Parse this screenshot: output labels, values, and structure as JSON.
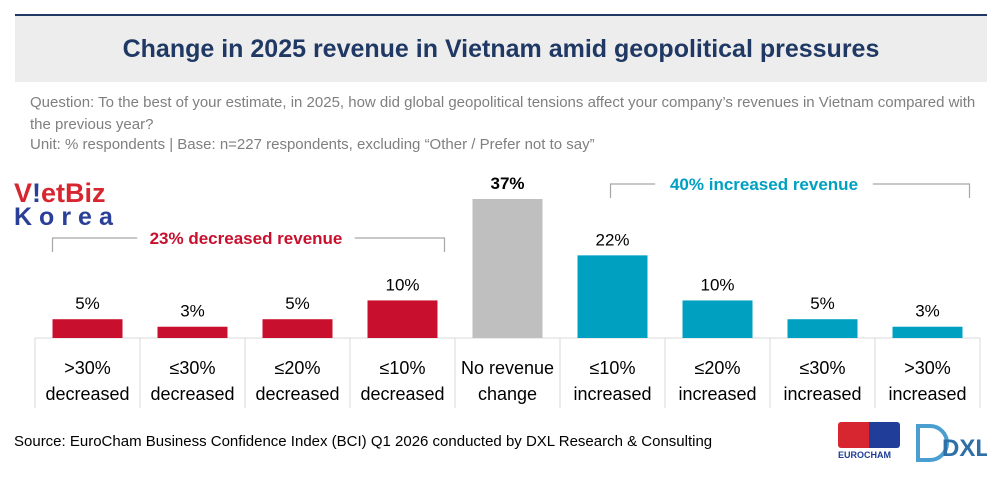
{
  "title": "Change in 2025 revenue in Vietnam amid geopolitical pressures",
  "question": "Question: To the best of your estimate, in 2025, how did global geopolitical tensions affect your company’s revenues in Vietnam compared with the previous year?",
  "unit": "Unit: % respondents | Base: n=227 respondents, excluding “Other / Prefer not to say”",
  "source": "Source: EuroCham Business Confidence Index (BCI) Q1 2026 conducted by DXL Research & Consulting",
  "logos": {
    "vietbiz_line1": "VietBiz",
    "vietbiz_line2": "Korea",
    "eurocham": "EUROCHAM",
    "dxl": "DXL"
  },
  "colors": {
    "decreased": "#c8102e",
    "no_change": "#bfbfbf",
    "increased": "#00a0c0",
    "title": "#1f3864"
  },
  "chart_data": {
    "type": "bar",
    "title": "Change in 2025 revenue in Vietnam amid geopolitical pressures",
    "categories": [
      ">30% decreased",
      "≤30% decreased",
      "≤20% decreased",
      "≤10% decreased",
      "No revenue change",
      "≤10% increased",
      "≤20% increased",
      "≤30% increased",
      ">30% increased"
    ],
    "category_lines": [
      [
        ">30%",
        "decreased"
      ],
      [
        "≤30%",
        "decreased"
      ],
      [
        "≤20%",
        "decreased"
      ],
      [
        "≤10%",
        "decreased"
      ],
      [
        "No revenue",
        "change"
      ],
      [
        "≤10%",
        "increased"
      ],
      [
        "≤20%",
        "increased"
      ],
      [
        "≤30%",
        "increased"
      ],
      [
        ">30%",
        "increased"
      ]
    ],
    "values": [
      5,
      3,
      5,
      10,
      37,
      22,
      10,
      5,
      3
    ],
    "value_labels": [
      "5%",
      "3%",
      "5%",
      "10%",
      "37%",
      "22%",
      "10%",
      "5%",
      "3%"
    ],
    "groups": [
      "decreased",
      "decreased",
      "decreased",
      "decreased",
      "no_change",
      "increased",
      "increased",
      "increased",
      "increased"
    ],
    "unit": "%",
    "ylim": [
      0,
      37
    ],
    "grid": false,
    "annotations": [
      {
        "text": "23% decreased revenue",
        "group": "decreased"
      },
      {
        "text": "40% increased revenue",
        "group": "increased"
      }
    ]
  }
}
